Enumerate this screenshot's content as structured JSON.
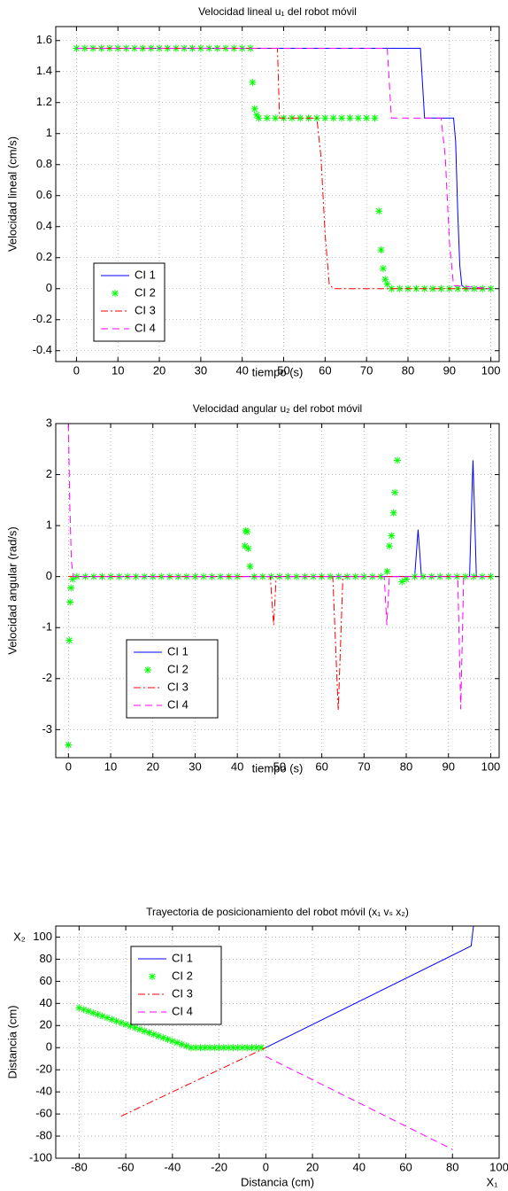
{
  "chart_data": [
    {
      "type": "line",
      "title": "Velocidad lineal u₁ del robot móvil",
      "xlabel": "tiempo (s)",
      "ylabel": "Velocidad lineal (cm/s)",
      "xlim": [
        -5,
        102
      ],
      "ylim": [
        -0.47,
        1.69
      ],
      "xticks": [
        0,
        10,
        20,
        30,
        40,
        50,
        60,
        70,
        80,
        90,
        100
      ],
      "yticks": [
        1.6,
        1.4,
        1.2,
        1,
        0.8,
        0.6,
        0.4,
        0.2,
        0,
        -0.2,
        -0.4
      ],
      "grid": true,
      "legend": "lower-left",
      "series": [
        {
          "name": "CI 1",
          "color": "#0000ff",
          "line_style": "solid",
          "marker": "none",
          "x": [
            0,
            83,
            84,
            91,
            91.5,
            92,
            92.5,
            93,
            94,
            100
          ],
          "values": [
            1.55,
            1.55,
            1.1,
            1.1,
            0.95,
            0.5,
            0.15,
            0.02,
            0,
            0
          ]
        },
        {
          "name": "CI 2",
          "color": "#00ff00",
          "line_style": "none",
          "marker": "star",
          "x": [
            0,
            2,
            4,
            6,
            8,
            10,
            12,
            14,
            16,
            18,
            20,
            22,
            24,
            26,
            28,
            30,
            32,
            34,
            36,
            38,
            40,
            42,
            42.5,
            43,
            43.5,
            44,
            46,
            48,
            50,
            52,
            54,
            56,
            58,
            60,
            62,
            64,
            66,
            68,
            70,
            72,
            73,
            73.5,
            74,
            74.5,
            75,
            76,
            78,
            80,
            82,
            84,
            86,
            88,
            90,
            92,
            94,
            96,
            98,
            100
          ],
          "values": [
            1.55,
            1.55,
            1.55,
            1.55,
            1.55,
            1.55,
            1.55,
            1.55,
            1.55,
            1.55,
            1.55,
            1.55,
            1.55,
            1.55,
            1.55,
            1.55,
            1.55,
            1.55,
            1.55,
            1.55,
            1.55,
            1.55,
            1.33,
            1.16,
            1.12,
            1.1,
            1.1,
            1.1,
            1.1,
            1.1,
            1.1,
            1.1,
            1.1,
            1.1,
            1.1,
            1.1,
            1.1,
            1.1,
            1.1,
            1.1,
            0.5,
            0.25,
            0.13,
            0.06,
            0.03,
            0,
            0,
            0,
            0,
            0,
            0,
            0,
            0,
            0,
            0,
            0,
            0,
            0
          ]
        },
        {
          "name": "CI 3",
          "color": "#ff0000",
          "line_style": "dashdot",
          "marker": "none",
          "x": [
            0,
            48.5,
            49,
            58,
            59,
            60,
            61,
            62,
            100
          ],
          "values": [
            1.55,
            1.55,
            1.1,
            1.1,
            0.85,
            0.35,
            0.03,
            0,
            0
          ]
        },
        {
          "name": "CI 4",
          "color": "#ff00ff",
          "line_style": "dashed",
          "marker": "none",
          "x": [
            0,
            75,
            76,
            88,
            89,
            90,
            91,
            100
          ],
          "values": [
            1.55,
            1.55,
            1.1,
            1.1,
            0.85,
            0.3,
            0.02,
            0
          ]
        }
      ]
    },
    {
      "type": "line",
      "title": "Velocidad angular u₂ del robot móvil",
      "xlabel": "tiempo (s)",
      "ylabel": "Velocidad angular (rad/s)",
      "xlim": [
        -3,
        102
      ],
      "ylim": [
        -3.55,
        3
      ],
      "xticks": [
        0,
        10,
        20,
        30,
        40,
        50,
        60,
        70,
        80,
        90,
        100
      ],
      "yticks": [
        3,
        2,
        1,
        0,
        -1,
        -2,
        -3
      ],
      "grid": true,
      "legend": "lower-left",
      "series": [
        {
          "name": "CI 1",
          "color": "#0000ff",
          "line_style": "solid",
          "marker": "none",
          "x": [
            1,
            82,
            82.8,
            83.6,
            95,
            95.4,
            95.8,
            96.2,
            96.6,
            100
          ],
          "values": [
            0,
            0,
            0.92,
            0,
            0,
            1.2,
            2.28,
            1.2,
            0,
            0
          ]
        },
        {
          "name": "CI 2",
          "color": "#00ff00",
          "line_style": "none",
          "marker": "star",
          "x": [
            0,
            0.2,
            0.4,
            0.6,
            1,
            2,
            4,
            6,
            8,
            10,
            12,
            14,
            16,
            18,
            20,
            22,
            24,
            26,
            28,
            30,
            32,
            34,
            36,
            38,
            40,
            41.8,
            42,
            42.3,
            42.6,
            43,
            44,
            46,
            48,
            50,
            52,
            54,
            56,
            58,
            60,
            62,
            64,
            66,
            68,
            70,
            72,
            74,
            75.5,
            76,
            76.5,
            77,
            77.3,
            77.9,
            79,
            80,
            82,
            84,
            86,
            88,
            90,
            92,
            94,
            96,
            98,
            100
          ],
          "values": [
            -3.3,
            -1.25,
            -0.5,
            -0.22,
            -0.05,
            0,
            0,
            0,
            0,
            0,
            0,
            0,
            0,
            0,
            0,
            0,
            0,
            0,
            0,
            0,
            0,
            0,
            0,
            0,
            0,
            0.6,
            0.9,
            0.88,
            0.55,
            0.2,
            0,
            0,
            0,
            0,
            0,
            0,
            0,
            0,
            0,
            0,
            0,
            0,
            0,
            0,
            0,
            0,
            0.1,
            0.6,
            0.8,
            1.25,
            1.65,
            2.28,
            -0.1,
            -0.05,
            0,
            0,
            0,
            0,
            0,
            0,
            0,
            0,
            0,
            0
          ]
        },
        {
          "name": "CI 3",
          "color": "#ff0000",
          "line_style": "dashdot",
          "marker": "none",
          "x": [
            0,
            47.8,
            48.6,
            49.2,
            62.6,
            63.9,
            65,
            100
          ],
          "values": [
            0,
            0,
            -0.95,
            0,
            0,
            -2.62,
            0,
            0
          ]
        },
        {
          "name": "CI 4",
          "color": "#ff00ff",
          "line_style": "dashed",
          "marker": "none",
          "x": [
            0,
            0.3,
            0.7,
            1.2,
            74.8,
            75.4,
            76,
            92.2,
            92.9,
            93.6,
            100
          ],
          "values": [
            3,
            1.5,
            0.3,
            0,
            0,
            -0.95,
            0,
            0,
            -2.6,
            0,
            0
          ]
        }
      ]
    },
    {
      "type": "line",
      "title": "Trayectoria de posicionamiento del robot móvil (x₁ vₛ x₂)",
      "xlabel": "Distancia (cm)",
      "ylabel": "Distancia (cm)",
      "x_axis_name": "X₁",
      "y_axis_name": "X₂",
      "xlim": [
        -90,
        100
      ],
      "ylim": [
        -100,
        110
      ],
      "xticks": [
        -80,
        -60,
        -40,
        -20,
        0,
        20,
        40,
        60,
        80,
        100
      ],
      "yticks": [
        100,
        80,
        60,
        40,
        20,
        0,
        -20,
        -40,
        -60,
        -80,
        -100
      ],
      "grid": true,
      "legend": "upper-left",
      "series": [
        {
          "name": "CI 1",
          "color": "#0000ff",
          "line_style": "solid",
          "marker": "none",
          "x": [
            0,
            88,
            89
          ],
          "values": [
            0,
            92,
            110
          ]
        },
        {
          "name": "CI 2",
          "color": "#00ff00",
          "line_style": "none",
          "marker": "star",
          "x": [
            -80,
            -78,
            -76,
            -74,
            -72,
            -70,
            -68,
            -66,
            -64,
            -62,
            -60,
            -58,
            -56,
            -54,
            -52,
            -50,
            -48,
            -46,
            -44,
            -42,
            -40,
            -38,
            -36,
            -34,
            -32,
            -30,
            -28,
            -26,
            -24,
            -22,
            -20,
            -18,
            -16,
            -14,
            -12,
            -10,
            -8,
            -6,
            -4,
            -2
          ],
          "values": [
            36,
            34.5,
            33,
            31.5,
            30,
            28.5,
            27,
            25.5,
            24,
            22.5,
            21,
            19.5,
            18,
            16.5,
            15,
            13.5,
            12,
            10.5,
            9,
            7.5,
            6,
            4.5,
            3,
            1.5,
            0,
            0,
            0,
            0,
            0,
            0,
            0,
            0,
            0,
            0,
            0,
            0,
            0,
            0,
            0,
            0
          ]
        },
        {
          "name": "CI 3",
          "color": "#ff0000",
          "line_style": "dashdot",
          "marker": "none",
          "x": [
            -62,
            0
          ],
          "values": [
            -62,
            0
          ]
        },
        {
          "name": "CI 4",
          "color": "#ff00ff",
          "line_style": "dashed",
          "marker": "none",
          "x": [
            0,
            80
          ],
          "values": [
            -8,
            -92
          ]
        }
      ]
    }
  ]
}
